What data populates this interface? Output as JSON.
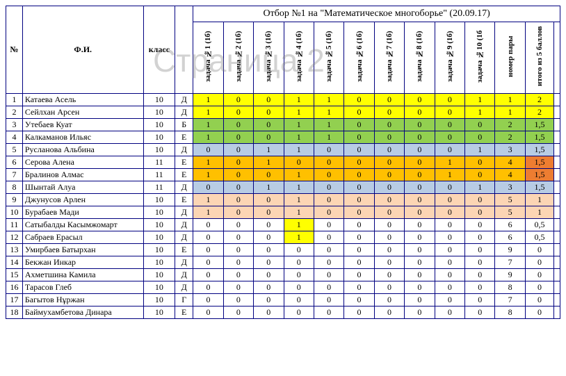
{
  "watermark": "Страница 2",
  "title": "Отбор №1 на \"Математическое многоборье\" (20.09.17)",
  "headers": {
    "num": "№",
    "fio": "Ф.И.",
    "klass": "класс",
    "tasks": [
      "задача №1 (1б)",
      "задача №2 (1б)",
      "задача №3 (1б)",
      "задача №4 (1б)",
      "задача №5 (1б)",
      "задача №6 (1б)",
      "задача №7 (1б)",
      "задача №8 (1б)",
      "задача №9 (1б)",
      "задача №10 (1б"
    ],
    "pair": "номер пары",
    "total": "итого из 5 баллов"
  },
  "colors": {
    "yellow": "#ffff00",
    "green": "#92d050",
    "blue": "#b8cce4",
    "orange": "#ffc000",
    "pink": "#fcd5b4",
    "dorange": "#ed7d31",
    "white": "#ffffff"
  },
  "rows": [
    {
      "n": 1,
      "name": "Катаева Асель",
      "kl": 10,
      "g": "Д",
      "t": [
        1,
        0,
        0,
        1,
        1,
        0,
        0,
        0,
        0,
        1
      ],
      "p": 1,
      "tot": "2",
      "c": "yellow"
    },
    {
      "n": 2,
      "name": "Сейлхан Арсен",
      "kl": 10,
      "g": "Д",
      "t": [
        1,
        0,
        0,
        1,
        1,
        0,
        0,
        0,
        0,
        1
      ],
      "p": 1,
      "tot": "2",
      "c": "yellow"
    },
    {
      "n": 3,
      "name": "Утебаев Куат",
      "kl": 10,
      "g": "Б",
      "t": [
        1,
        0,
        0,
        1,
        1,
        0,
        0,
        0,
        0,
        0
      ],
      "p": 2,
      "tot": "1,5",
      "c": "green"
    },
    {
      "n": 4,
      "name": "Калкаманов Ильяс",
      "kl": 10,
      "g": "Е",
      "t": [
        1,
        0,
        0,
        1,
        1,
        0,
        0,
        0,
        0,
        0
      ],
      "p": 2,
      "tot": "1,5",
      "c": "green"
    },
    {
      "n": 5,
      "name": "Русланова Альбина",
      "kl": 10,
      "g": "Д",
      "t": [
        0,
        0,
        1,
        1,
        0,
        0,
        0,
        0,
        0,
        1
      ],
      "p": 3,
      "tot": "1,5",
      "c": "blue"
    },
    {
      "n": 6,
      "name": "Серова Алена",
      "kl": 11,
      "g": "Е",
      "t": [
        1,
        0,
        1,
        0,
        0,
        0,
        0,
        0,
        1,
        0
      ],
      "p": 4,
      "tot": "1,5",
      "c": "orange",
      "totc": "dorange"
    },
    {
      "n": 7,
      "name": "Бралинов Алмас",
      "kl": 11,
      "g": "Е",
      "t": [
        1,
        0,
        0,
        1,
        0,
        0,
        0,
        0,
        1,
        0
      ],
      "p": 4,
      "tot": "1,5",
      "c": "orange",
      "totc": "dorange"
    },
    {
      "n": 8,
      "name": "Шынтай Алуа",
      "kl": 11,
      "g": "Д",
      "t": [
        0,
        0,
        1,
        1,
        0,
        0,
        0,
        0,
        0,
        1
      ],
      "p": 3,
      "tot": "1,5",
      "c": "blue"
    },
    {
      "n": 9,
      "name": "Джунусов Арлен",
      "kl": 10,
      "g": "Е",
      "t": [
        1,
        0,
        0,
        1,
        0,
        0,
        0,
        0,
        0,
        0
      ],
      "p": 5,
      "tot": "1",
      "c": "pink"
    },
    {
      "n": 10,
      "name": "Бурабаев Мади",
      "kl": 10,
      "g": "Д",
      "t": [
        1,
        0,
        0,
        1,
        0,
        0,
        0,
        0,
        0,
        0
      ],
      "p": 5,
      "tot": "1",
      "c": "pink"
    },
    {
      "n": 11,
      "name": "Сатыбалды Касымжомарт",
      "kl": 10,
      "g": "Д",
      "t": [
        0,
        0,
        0,
        "1y",
        0,
        0,
        0,
        0,
        0,
        0
      ],
      "p": 6,
      "tot": "0,5",
      "c": "white"
    },
    {
      "n": 12,
      "name": "Сабраев Ерасыл",
      "kl": 10,
      "g": "Д",
      "t": [
        0,
        0,
        0,
        "1y",
        0,
        0,
        0,
        0,
        0,
        0
      ],
      "p": 6,
      "tot": "0,5",
      "c": "white"
    },
    {
      "n": 13,
      "name": "Умирбаев Батырхан",
      "kl": 10,
      "g": "Е",
      "t": [
        0,
        0,
        0,
        0,
        0,
        0,
        0,
        0,
        0,
        0
      ],
      "p": 9,
      "tot": "0",
      "c": "white"
    },
    {
      "n": 14,
      "name": "Бекжан Инкар",
      "kl": 10,
      "g": "Д",
      "t": [
        0,
        0,
        0,
        0,
        0,
        0,
        0,
        0,
        0,
        0
      ],
      "p": 7,
      "tot": "0",
      "c": "white"
    },
    {
      "n": 15,
      "name": "Ахметшина Камила",
      "kl": 10,
      "g": "Д",
      "t": [
        0,
        0,
        0,
        0,
        0,
        0,
        0,
        0,
        0,
        0
      ],
      "p": 9,
      "tot": "0",
      "c": "white"
    },
    {
      "n": 16,
      "name": "Тарасов Глеб",
      "kl": 10,
      "g": "Д",
      "t": [
        0,
        0,
        0,
        0,
        0,
        0,
        0,
        0,
        0,
        0
      ],
      "p": 8,
      "tot": "0",
      "c": "white"
    },
    {
      "n": 17,
      "name": "Багытов Нұржан",
      "kl": 10,
      "g": "Г",
      "t": [
        0,
        0,
        0,
        0,
        0,
        0,
        0,
        0,
        0,
        0
      ],
      "p": 7,
      "tot": "0",
      "c": "white"
    },
    {
      "n": 18,
      "name": "Баймухамбетова Динара",
      "kl": 10,
      "g": "Е",
      "t": [
        0,
        0,
        0,
        0,
        0,
        0,
        0,
        0,
        0,
        0
      ],
      "p": 8,
      "tot": "0",
      "c": "white"
    }
  ]
}
